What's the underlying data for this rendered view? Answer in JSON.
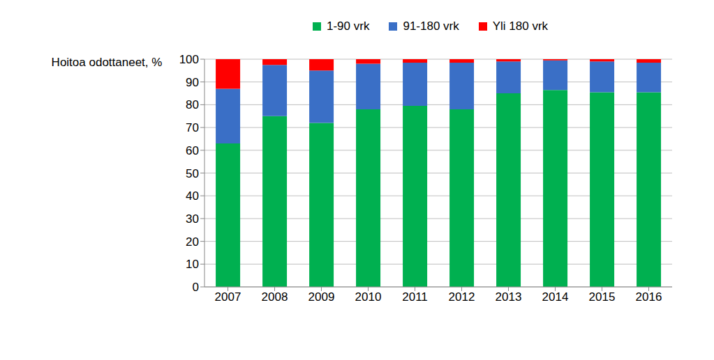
{
  "chart_data": {
    "type": "bar",
    "stacked": true,
    "grid": true,
    "legend": "top",
    "y_label": "Hoitoa odottaneet, %",
    "categories": [
      "2007",
      "2008",
      "2009",
      "2010",
      "2011",
      "2012",
      "2013",
      "2014",
      "2015",
      "2016"
    ],
    "series": [
      {
        "name": "1-90 vrk",
        "color": "#00b050",
        "values": [
          63,
          75,
          72,
          78,
          79.5,
          78,
          85,
          86.5,
          85.5,
          85.5
        ]
      },
      {
        "name": "91-180 vrk",
        "color": "#3a6fc6",
        "values": [
          24,
          22.5,
          23,
          20,
          19,
          20.5,
          14,
          13,
          13.5,
          13
        ]
      },
      {
        "name": "Yli 180 vrk",
        "color": "#ff0000",
        "values": [
          13,
          2.5,
          5,
          2,
          1.5,
          1.5,
          1,
          0.5,
          1,
          1.5
        ]
      }
    ],
    "ylim": [
      0,
      100
    ],
    "yticks": [
      0,
      10,
      20,
      30,
      40,
      50,
      60,
      70,
      80,
      90,
      100
    ]
  }
}
